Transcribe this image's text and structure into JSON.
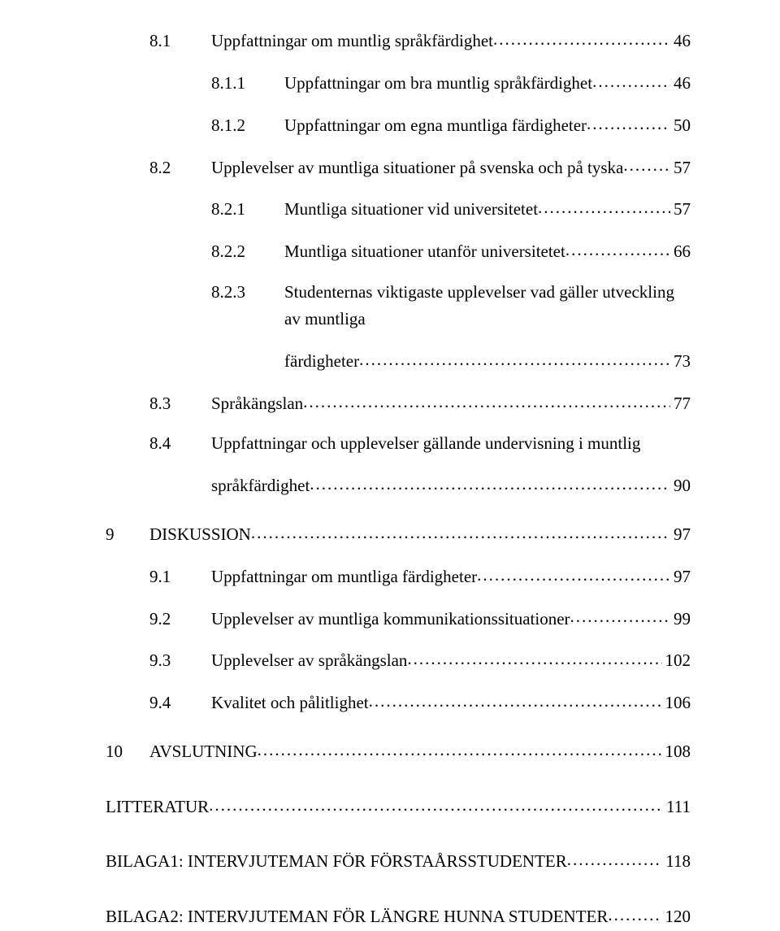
{
  "entries": [
    {
      "num": "8.1",
      "title": "Uppfattningar om muntlig språkfärdighet",
      "page": "46"
    },
    {
      "num": "8.1.1",
      "title": "Uppfattningar om bra muntlig språkfärdighet",
      "page": "46"
    },
    {
      "num": "8.1.2",
      "title": "Uppfattningar om egna muntliga färdigheter",
      "page": "50"
    },
    {
      "num": "8.2",
      "title": "Upplevelser av muntliga situationer på svenska och på tyska",
      "page": "57"
    },
    {
      "num": "8.2.1",
      "title": "Muntliga situationer vid universitetet",
      "page": "57"
    },
    {
      "num": "8.2.2",
      "title": "Muntliga situationer utanför universitetet",
      "page": "66"
    },
    {
      "num": "8.2.3",
      "title_a": "Studenternas viktigaste upplevelser vad gäller utveckling av muntliga",
      "title_b": "färdigheter",
      "page": "73"
    },
    {
      "num": "8.3",
      "title": "Språkängslan",
      "page": "77"
    },
    {
      "num": "8.4",
      "title_a": "Uppfattningar och upplevelser gällande undervisning i muntlig",
      "title_b": "språkfärdighet",
      "page": "90"
    },
    {
      "num": "9",
      "title": "DISKUSSION",
      "page": "97"
    },
    {
      "num": "9.1",
      "title": "Uppfattningar om muntliga färdigheter",
      "page": "97"
    },
    {
      "num": "9.2",
      "title": "Upplevelser av muntliga kommunikationssituationer",
      "page": "99"
    },
    {
      "num": "9.3",
      "title": "Upplevelser av språkängslan",
      "page": "102"
    },
    {
      "num": "9.4",
      "title": "Kvalitet och pålitlighet",
      "page": "106"
    },
    {
      "num": "10",
      "title": "AVSLUTNING",
      "page": "108"
    },
    {
      "title": "LITTERATUR",
      "page": "111"
    },
    {
      "title": "BILAGA1: INTERVJUTEMAN FÖR FÖRSTAÅRSSTUDENTER",
      "page": "118"
    },
    {
      "title": "BILAGA2: INTERVJUTEMAN FÖR LÄNGRE HUNNA STUDENTER",
      "page": "120"
    }
  ],
  "colors": {
    "text": "#000000",
    "background": "#ffffff"
  },
  "font": {
    "family": "Times New Roman",
    "size_pt": 16
  }
}
